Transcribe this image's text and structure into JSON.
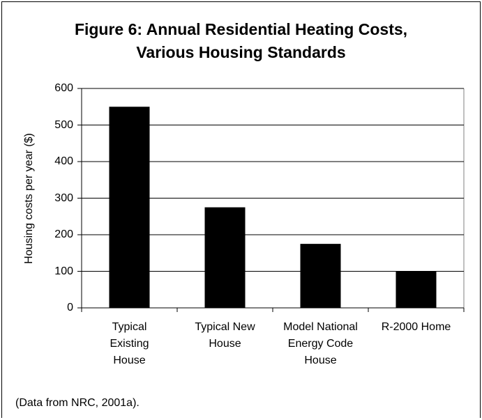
{
  "chart_data": {
    "type": "bar",
    "title": "Figure 6: Annual Residential Heating Costs,\nVarious Housing Standards",
    "y_label": "Housing costs per year ($)",
    "categories": [
      "Typical\nExisting\nHouse",
      "Typical New\nHouse",
      "Model National\nEnergy Code\nHouse",
      "R-2000 Home"
    ],
    "values": [
      550,
      275,
      175,
      100
    ],
    "color": "#000000",
    "ylim": [
      0,
      600
    ],
    "yticks": [
      0,
      100,
      200,
      300,
      400,
      500,
      600
    ],
    "grid": true,
    "note": "(Data from NRC, 2001a)."
  }
}
